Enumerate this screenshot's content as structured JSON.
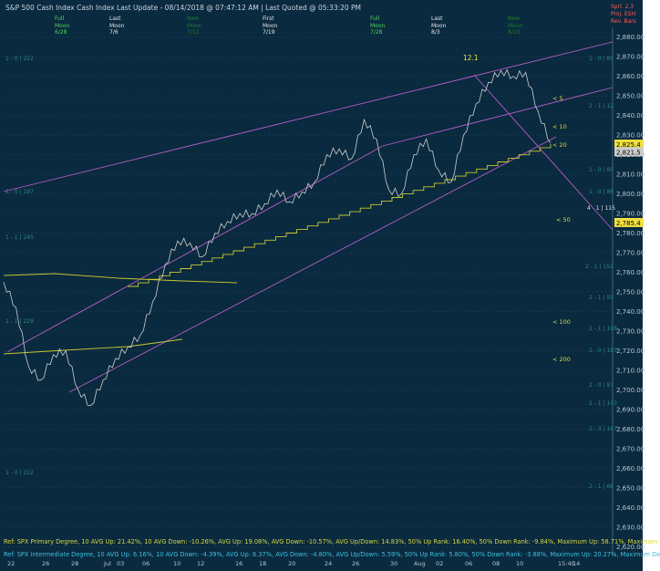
{
  "header": {
    "title_line": "S&P 500 Cash Index   Cash Index   Last Update - 08/14/2018 @ 07:47:12 AM | Last Quoted @ 05:33:20 PM"
  },
  "moon_markers": [
    {
      "phase": "Full",
      "label": "Moon",
      "date": "6/28",
      "style": "green"
    },
    {
      "phase": "Last",
      "label": "Moon",
      "date": "7/6",
      "style": "white"
    },
    {
      "phase": "New",
      "label": "Moon",
      "date": "7/12",
      "style": "dim"
    },
    {
      "phase": "First",
      "label": "Moon",
      "date": "7/19",
      "style": "white"
    },
    {
      "phase": "Full",
      "label": "Moon",
      "date": "7/28",
      "style": "green"
    },
    {
      "phase": "Last",
      "label": "Moon",
      "date": "8/3",
      "style": "white"
    },
    {
      "phase": "New",
      "label": "Moon",
      "date": "8/10",
      "style": "dim"
    }
  ],
  "legend": [
    {
      "label": "Sprl.",
      "value": "2.3",
      "color": "#ff5a5a"
    },
    {
      "label": "Proj.",
      "value": "ESH",
      "color": "#ff5a5a"
    },
    {
      "label": "Rev.",
      "value": "Bars",
      "color": "#ff5a5a"
    }
  ],
  "chart_data": {
    "type": "line",
    "yaxis_ticks": [
      "2,880.00",
      "2,870.00",
      "2,860.00",
      "2,850.00",
      "2,840.00",
      "2,830.00",
      "2,820.00",
      "2,810.00",
      "2,800.00",
      "2,790.00",
      "2,780.00",
      "2,770.00",
      "2,760.00",
      "2,750.00",
      "2,740.00",
      "2,730.00",
      "2,720.00",
      "2,710.00",
      "2,700.00",
      "2,690.00",
      "2,680.00",
      "2,670.00",
      "2,660.00",
      "2,650.00",
      "2,640.00",
      "2,630.00",
      "2,620.00"
    ],
    "ylim": [
      2615,
      2885
    ],
    "xaxis_ticks": [
      "22",
      "26",
      "28",
      "Jul",
      "03",
      "06",
      "10",
      "12",
      "16",
      "18",
      "20",
      "24",
      "26",
      "30",
      "Aug",
      "02",
      "06",
      "08",
      "10",
      "15:40",
      "14"
    ],
    "last_price_label": "2,825.4",
    "last_price_label_2": "2,821.5",
    "lower_price_label": "2,785.4",
    "top_label": "12.1",
    "price_series": {
      "name": "SPX",
      "x": [
        0,
        0.02,
        0.04,
        0.06,
        0.08,
        0.1,
        0.12,
        0.14,
        0.16,
        0.18,
        0.2,
        0.22,
        0.24,
        0.26,
        0.28,
        0.3,
        0.32,
        0.34,
        0.36,
        0.38,
        0.4,
        0.42,
        0.44,
        0.46,
        0.48,
        0.5,
        0.52,
        0.54,
        0.56,
        0.58,
        0.6,
        0.62,
        0.64,
        0.66,
        0.68,
        0.7,
        0.72,
        0.74,
        0.76,
        0.78,
        0.8,
        0.82,
        0.84,
        0.86,
        0.88
      ],
      "y": [
        2755,
        2742,
        2712,
        2705,
        2718,
        2720,
        2700,
        2692,
        2705,
        2716,
        2722,
        2728,
        2745,
        2764,
        2776,
        2775,
        2768,
        2780,
        2786,
        2790,
        2790,
        2795,
        2802,
        2796,
        2801,
        2806,
        2820,
        2823,
        2818,
        2838,
        2828,
        2802,
        2800,
        2820,
        2828,
        2812,
        2806,
        2830,
        2846,
        2857,
        2863,
        2860,
        2862,
        2842,
        2826
      ]
    },
    "ma_labels": [
      "< 5",
      "< 10",
      "< 20",
      "< 50",
      "< 100",
      "< 200"
    ],
    "fib_labels": [
      "1 - 0 | 222",
      "1 - 0 | 197",
      "1 - 1 | 245",
      "1 - 1 | 229",
      "1 - 0 | 222",
      "1 - 0 | 85",
      "2 - 1 | 12",
      "1 - 0 | 85",
      "1 - 0 | 86",
      "4 - 1 | 115",
      "2 - 1 | 152",
      "2 - 1 | 55",
      "2 - 1 | 198",
      "2 - 0 | 183",
      "2 - 0 | 87",
      "2 - 1 | 143",
      "2 - 3 | 167",
      "2 - 1 | 66"
    ],
    "refs": [
      "Ref: SPX Primary Degree, 10 AVG Up: 21.42%, 10 AVG Down: -10.26%, AVG Up: 19.08%, AVG Down: -10.57%, AVG Up/Down: 14.83%, 50%  Up Rank: 16.40%, 50% Down Rank: -9.84%, Maximum Up: 58.71%, Maximum",
      "Ref: SPX Intermediate Degree, 10 AVG Up: 6.16%, 10 AVG Down: -4.39%, AVG Up: 6.37%, AVG Down: -4.80%, AVG Up/Down: 5.59%, 50%  Up Rank: 5.80%, 50% Down Rank: -3.88%, Maximum Up: 20.27%, Maximum Do"
    ]
  },
  "colors": {
    "background": "#0a2a3f",
    "price": "#cfcfcf",
    "trendline": "#b85cc7",
    "ma": "#c8c832",
    "fib_label": "#1c6f6a",
    "ref1": "#d6d640",
    "ref2": "#3cc0e0"
  }
}
